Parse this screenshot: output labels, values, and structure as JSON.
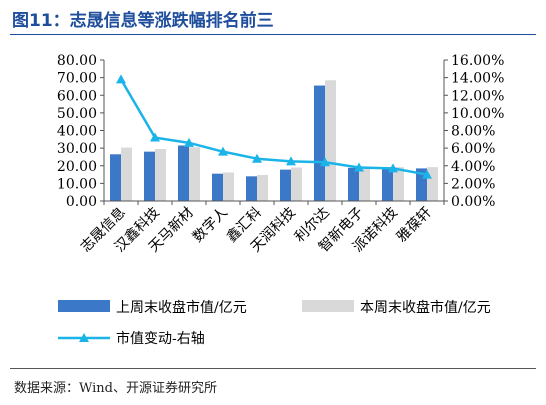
{
  "figure": {
    "title": "图11：志晟信息等涨跌幅排名前三",
    "source": "数据来源：Wind、开源证券研究所"
  },
  "chart_data": {
    "type": "bar",
    "categories": [
      "志晟信息",
      "汉鑫科技",
      "天马新材",
      "数字人",
      "鑫汇科",
      "天润科技",
      "利尔达",
      "智新电子",
      "派诺科技",
      "雅葆轩"
    ],
    "series": [
      {
        "name": "上周末收盘市值/亿元",
        "kind": "bar",
        "axis": "left",
        "color": "#3c78c8",
        "values": [
          26.5,
          28.0,
          31.5,
          15.5,
          14.0,
          17.8,
          65.5,
          18.8,
          18.5,
          18.5
        ]
      },
      {
        "name": "本周末收盘市值/亿元",
        "kind": "bar",
        "axis": "left",
        "color": "#d9d9d9",
        "values": [
          30.3,
          29.5,
          30.5,
          16.2,
          14.8,
          19.0,
          68.5,
          19.5,
          19.2,
          19.2
        ]
      },
      {
        "name": "市值变动-右轴",
        "kind": "line",
        "axis": "right",
        "color": "#1ab4e8",
        "values": [
          13.8,
          7.2,
          6.6,
          5.6,
          4.8,
          4.5,
          4.4,
          3.8,
          3.7,
          3.0
        ]
      }
    ],
    "y_left": {
      "min": 0,
      "max": 80,
      "step": 10,
      "ticks": [
        "0.00",
        "10.00",
        "20.00",
        "30.00",
        "40.00",
        "50.00",
        "60.00",
        "70.00",
        "80.00"
      ]
    },
    "y_right": {
      "min": 0,
      "max": 16,
      "step": 2,
      "ticks": [
        "0.00%",
        "2.00%",
        "4.00%",
        "6.00%",
        "8.00%",
        "10.00%",
        "12.00%",
        "14.00%",
        "16.00%"
      ]
    },
    "grid": false,
    "legend_position": "bottom"
  }
}
